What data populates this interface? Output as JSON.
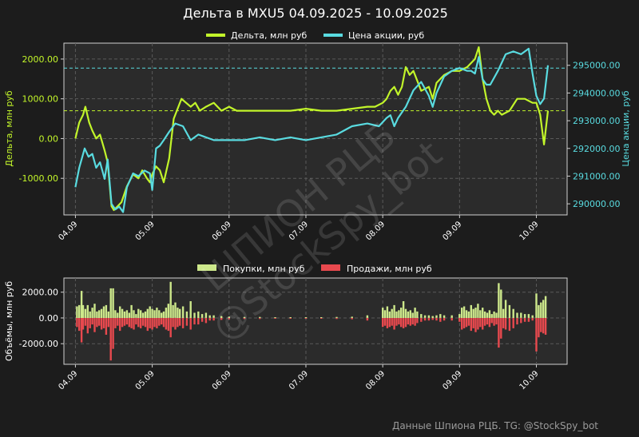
{
  "colors": {
    "background": "#1c1c1c",
    "plot_bg": "#2b2b2b",
    "delta": "#c2f52a",
    "price": "#59dbe0",
    "buys": "#cde88b",
    "sells": "#e8494e",
    "text": "#ffffff",
    "footer": "#9a9a9a"
  },
  "title": "Дельта в MXU5 04.09.2025 - 10.09.2025",
  "footer": "Данные Шпиона РЦБ. TG: @StockSpy_bot",
  "watermark": {
    "line1": "ШПИОН РЦБ",
    "line2": "@StockSpy_bot"
  },
  "chart_data": [
    {
      "type": "line",
      "legend_position": "top-center",
      "x_tick_labels": [
        "04.09",
        "05.09",
        "06.09",
        "07.09",
        "08.09",
        "09.09",
        "10.09"
      ],
      "x_ticks": [
        0,
        1,
        2,
        3,
        4,
        5,
        6
      ],
      "xlim": [
        -0.15,
        6.4
      ],
      "ylabel_left": "Дельта, млн руб",
      "ylabel_right": "Цена акции, руб",
      "ylim_left": [
        -1920,
        2400
      ],
      "ylim_right": [
        289600,
        295800
      ],
      "y_ticks_left": [
        -1000,
        0,
        1000,
        2000
      ],
      "y_ticks_left_labels": [
        "-1000.00",
        "0.00",
        "1000.00",
        "2000.00"
      ],
      "y_ticks_right": [
        290000,
        291000,
        292000,
        293000,
        294000,
        295000
      ],
      "y_ticks_right_labels": [
        "290000.00",
        "291000.00",
        "292000.00",
        "293000.00",
        "294000.00",
        "295000.00"
      ],
      "grid": true,
      "hlines": [
        {
          "axis": "left",
          "value": 700,
          "series": "Дельта, млн руб"
        },
        {
          "axis": "right",
          "value": 294900,
          "series": "Цена акции, руб"
        }
      ],
      "series": [
        {
          "name": "Дельта, млн руб",
          "axis": "left",
          "x": [
            0,
            0.05,
            0.1,
            0.13,
            0.18,
            0.22,
            0.27,
            0.32,
            0.38,
            0.42,
            0.47,
            0.5,
            0.55,
            0.6,
            0.67,
            0.75,
            0.82,
            0.87,
            0.93,
            0.97,
            1.0,
            1.05,
            1.1,
            1.15,
            1.22,
            1.28,
            1.38,
            1.5,
            1.56,
            1.62,
            1.7,
            1.8,
            1.9,
            2.0,
            2.1,
            2.2,
            2.4,
            2.6,
            2.8,
            3.0,
            3.2,
            3.4,
            3.6,
            3.8,
            3.9,
            4.0,
            4.05,
            4.1,
            4.15,
            4.2,
            4.25,
            4.3,
            4.35,
            4.4,
            4.5,
            4.6,
            4.65,
            4.7,
            4.75,
            4.8,
            4.9,
            5.0,
            5.1,
            5.15,
            5.2,
            5.25,
            5.3,
            5.35,
            5.4,
            5.45,
            5.5,
            5.55,
            5.65,
            5.75,
            5.85,
            5.95,
            6.0,
            6.05,
            6.1,
            6.15
          ],
          "y": [
            0,
            400,
            600,
            800,
            400,
            200,
            0,
            100,
            -300,
            -600,
            -1700,
            -1800,
            -1700,
            -1600,
            -1200,
            -900,
            -1000,
            -800,
            -1000,
            -1100,
            -900,
            -700,
            -800,
            -1100,
            -500,
            500,
            1000,
            800,
            900,
            700,
            800,
            900,
            700,
            800,
            700,
            700,
            700,
            700,
            700,
            750,
            700,
            700,
            750,
            800,
            800,
            900,
            1000,
            1200,
            1300,
            1100,
            1300,
            1800,
            1600,
            1700,
            1200,
            1300,
            1000,
            1400,
            1500,
            1600,
            1700,
            1700,
            1800,
            1900,
            2000,
            2300,
            1500,
            1000,
            700,
            600,
            700,
            600,
            700,
            1000,
            1000,
            900,
            900,
            600,
            -150,
            700
          ]
        },
        {
          "name": "Цена акции, руб",
          "axis": "right",
          "x": [
            0,
            0.05,
            0.12,
            0.17,
            0.22,
            0.27,
            0.32,
            0.38,
            0.42,
            0.47,
            0.52,
            0.57,
            0.62,
            0.67,
            0.75,
            0.82,
            0.9,
            0.97,
            1.0,
            1.05,
            1.1,
            1.15,
            1.22,
            1.3,
            1.4,
            1.5,
            1.6,
            1.7,
            1.8,
            2.0,
            2.2,
            2.4,
            2.6,
            2.8,
            3.0,
            3.2,
            3.4,
            3.6,
            3.8,
            3.95,
            4.05,
            4.1,
            4.15,
            4.2,
            4.3,
            4.4,
            4.5,
            4.6,
            4.65,
            4.7,
            4.75,
            4.8,
            4.9,
            5.0,
            5.1,
            5.15,
            5.2,
            5.25,
            5.3,
            5.35,
            5.4,
            5.5,
            5.6,
            5.7,
            5.8,
            5.9,
            5.95,
            6.0,
            6.05,
            6.1,
            6.15
          ],
          "y": [
            290600,
            291300,
            292000,
            291700,
            291800,
            291300,
            291500,
            290900,
            291600,
            290000,
            289800,
            289900,
            289700,
            290600,
            291100,
            291000,
            291200,
            291100,
            290500,
            292000,
            292100,
            292300,
            292600,
            292900,
            292800,
            292300,
            292500,
            292400,
            292300,
            292300,
            292300,
            292400,
            292300,
            292400,
            292300,
            292400,
            292500,
            292800,
            292900,
            292800,
            293100,
            293200,
            292800,
            293100,
            293500,
            294100,
            294400,
            293900,
            293500,
            294000,
            294300,
            294600,
            294800,
            294900,
            294800,
            294800,
            294700,
            295300,
            294500,
            294300,
            294300,
            294800,
            295400,
            295500,
            295400,
            295600,
            294700,
            293900,
            293600,
            293800,
            295000
          ]
        }
      ]
    },
    {
      "type": "bar",
      "legend_position": "top-center",
      "x_tick_labels": [
        "04.09",
        "05.09",
        "06.09",
        "07.09",
        "08.09",
        "09.09",
        "10.09"
      ],
      "x_ticks": [
        0,
        1,
        2,
        3,
        4,
        5,
        6
      ],
      "xlim": [
        -0.15,
        6.4
      ],
      "ylabel": "Объёмы, млн руб",
      "ylim": [
        -3600,
        3100
      ],
      "y_ticks": [
        -2000,
        0,
        2000
      ],
      "y_ticks_labels": [
        "-2000.00",
        "0.00",
        "2000.00"
      ],
      "grid": true,
      "series": [
        {
          "name": "Покупки, млн руб",
          "x": [
            0.02,
            0.05,
            0.08,
            0.1,
            0.13,
            0.16,
            0.19,
            0.22,
            0.25,
            0.28,
            0.31,
            0.34,
            0.37,
            0.4,
            0.43,
            0.46,
            0.49,
            0.52,
            0.55,
            0.58,
            0.61,
            0.64,
            0.67,
            0.7,
            0.73,
            0.76,
            0.79,
            0.82,
            0.85,
            0.88,
            0.91,
            0.94,
            0.97,
            1.0,
            1.03,
            1.06,
            1.09,
            1.12,
            1.15,
            1.18,
            1.21,
            1.24,
            1.27,
            1.3,
            1.33,
            1.36,
            1.4,
            1.45,
            1.5,
            1.55,
            1.6,
            1.65,
            1.7,
            1.75,
            1.8,
            1.9,
            2.0,
            2.2,
            2.4,
            2.6,
            2.8,
            3.0,
            3.2,
            3.4,
            3.6,
            3.8,
            4.0,
            4.03,
            4.06,
            4.09,
            4.12,
            4.15,
            4.18,
            4.21,
            4.24,
            4.27,
            4.3,
            4.33,
            4.36,
            4.39,
            4.42,
            4.45,
            4.5,
            4.55,
            4.6,
            4.65,
            4.7,
            4.75,
            4.8,
            4.9,
            5.0,
            5.03,
            5.06,
            5.09,
            5.12,
            5.15,
            5.18,
            5.21,
            5.24,
            5.27,
            5.3,
            5.33,
            5.36,
            5.39,
            5.42,
            5.45,
            5.48,
            5.51,
            5.54,
            5.57,
            5.6,
            5.65,
            5.7,
            5.75,
            5.8,
            5.85,
            5.9,
            5.95,
            6.0,
            6.03,
            6.06,
            6.09,
            6.12
          ],
          "values": [
            900,
            1000,
            2100,
            1000,
            700,
            1000,
            500,
            800,
            1100,
            500,
            600,
            700,
            900,
            1000,
            500,
            2300,
            2300,
            600,
            400,
            900,
            700,
            500,
            600,
            400,
            1000,
            600,
            300,
            700,
            600,
            400,
            500,
            700,
            900,
            700,
            600,
            800,
            600,
            400,
            500,
            800,
            1100,
            2800,
            1000,
            1200,
            800,
            700,
            900,
            500,
            1300,
            400,
            500,
            300,
            400,
            200,
            200,
            150,
            100,
            80,
            80,
            60,
            60,
            60,
            60,
            80,
            100,
            200,
            800,
            600,
            900,
            500,
            700,
            1000,
            500,
            600,
            800,
            1300,
            700,
            500,
            600,
            400,
            800,
            500,
            300,
            200,
            200,
            150,
            200,
            300,
            200,
            200,
            300,
            800,
            900,
            600,
            500,
            1000,
            700,
            800,
            1100,
            600,
            800,
            500,
            400,
            600,
            300,
            500,
            400,
            2700,
            2200,
            700,
            1400,
            1000,
            700,
            400,
            400,
            300,
            300,
            200,
            1900,
            1000,
            1200,
            1400,
            1700
          ]
        },
        {
          "name": "Продажи, млн руб",
          "x": [
            0.02,
            0.05,
            0.08,
            0.1,
            0.13,
            0.16,
            0.19,
            0.22,
            0.25,
            0.28,
            0.31,
            0.34,
            0.37,
            0.4,
            0.43,
            0.46,
            0.49,
            0.52,
            0.55,
            0.58,
            0.61,
            0.64,
            0.67,
            0.7,
            0.73,
            0.76,
            0.79,
            0.82,
            0.85,
            0.88,
            0.91,
            0.94,
            0.97,
            1.0,
            1.03,
            1.06,
            1.09,
            1.12,
            1.15,
            1.18,
            1.21,
            1.24,
            1.27,
            1.3,
            1.33,
            1.36,
            1.4,
            1.45,
            1.5,
            1.55,
            1.6,
            1.65,
            1.7,
            1.75,
            1.8,
            1.9,
            2.0,
            2.2,
            2.4,
            2.6,
            2.8,
            3.0,
            3.2,
            3.4,
            3.6,
            3.8,
            4.0,
            4.03,
            4.06,
            4.09,
            4.12,
            4.15,
            4.18,
            4.21,
            4.24,
            4.27,
            4.3,
            4.33,
            4.36,
            4.39,
            4.42,
            4.45,
            4.5,
            4.55,
            4.6,
            4.65,
            4.7,
            4.75,
            4.8,
            4.9,
            5.0,
            5.03,
            5.06,
            5.09,
            5.12,
            5.15,
            5.18,
            5.21,
            5.24,
            5.27,
            5.3,
            5.33,
            5.36,
            5.39,
            5.42,
            5.45,
            5.48,
            5.51,
            5.54,
            5.57,
            5.6,
            5.65,
            5.7,
            5.75,
            5.8,
            5.85,
            5.9,
            5.95,
            6.0,
            6.03,
            6.06,
            6.09,
            6.12
          ],
          "values": [
            -700,
            -1000,
            -1900,
            -900,
            -600,
            -1200,
            -800,
            -500,
            -1100,
            -700,
            -600,
            -900,
            -800,
            -1300,
            -700,
            -3300,
            -2400,
            -800,
            -600,
            -1000,
            -700,
            -600,
            -500,
            -700,
            -800,
            -900,
            -500,
            -700,
            -800,
            -600,
            -700,
            -1000,
            -800,
            -900,
            -700,
            -800,
            -600,
            -500,
            -700,
            -900,
            -1000,
            -1500,
            -700,
            -900,
            -700,
            -600,
            -800,
            -600,
            -900,
            -500,
            -500,
            -300,
            -400,
            -200,
            -200,
            -150,
            -100,
            -80,
            -80,
            -60,
            -60,
            -60,
            -60,
            -80,
            -100,
            -200,
            -700,
            -600,
            -800,
            -700,
            -600,
            -900,
            -600,
            -500,
            -700,
            -800,
            -700,
            -500,
            -600,
            -500,
            -600,
            -400,
            -300,
            -200,
            -200,
            -150,
            -200,
            -300,
            -200,
            -200,
            -300,
            -900,
            -800,
            -700,
            -600,
            -1000,
            -800,
            -1100,
            -900,
            -700,
            -900,
            -600,
            -500,
            -700,
            -400,
            -600,
            -500,
            -2300,
            -1600,
            -800,
            -900,
            -1000,
            -800,
            -500,
            -400,
            -300,
            -300,
            -200,
            -2600,
            -1500,
            -1100,
            -1200,
            -1300
          ]
        }
      ]
    }
  ]
}
